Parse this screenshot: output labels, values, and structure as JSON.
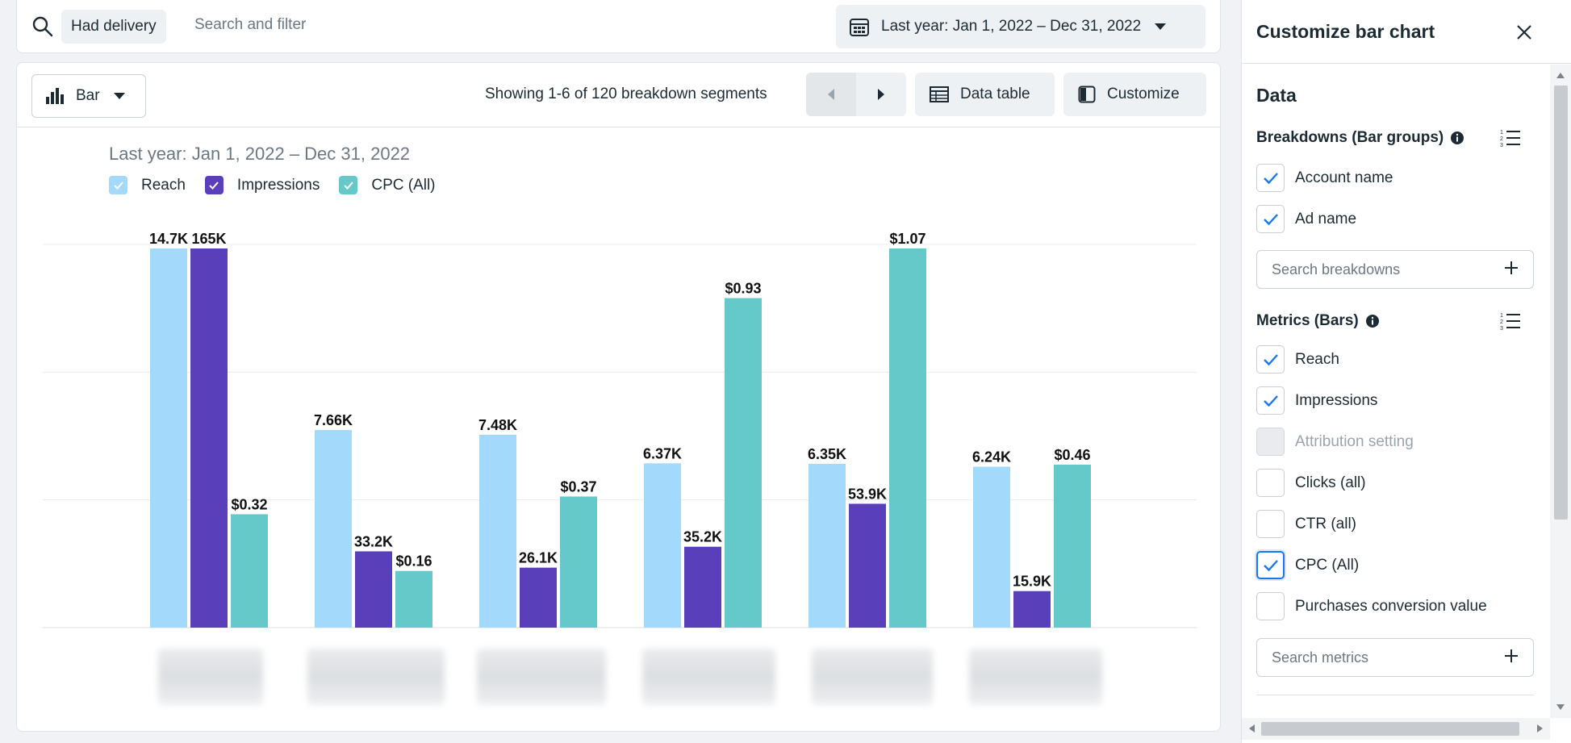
{
  "filter_bar": {
    "chip_label": "Had delivery",
    "search_placeholder": "Search and filter",
    "date_range_label": "Last year: Jan 1, 2022 – Dec 31, 2022"
  },
  "toolbar": {
    "chart_type_label": "Bar",
    "showing_text": "Showing 1-6 of 120 breakdown segments",
    "data_table_label": "Data table",
    "customize_label": "Customize"
  },
  "chart_data": {
    "type": "bar",
    "title": "Last year: Jan 1, 2022 – Dec 31, 2022",
    "categories": [
      "",
      "",
      "",
      "",
      "",
      ""
    ],
    "series": [
      {
        "name": "Reach",
        "color": "#a3d9fb",
        "values": [
          14.7,
          7.66,
          7.48,
          6.37,
          6.35,
          6.24
        ],
        "labels": [
          "14.7K",
          "7.66K",
          "7.48K",
          "6.37K",
          "6.35K",
          "6.24K"
        ]
      },
      {
        "name": "Impressions",
        "color": "#5a3fbb",
        "values": [
          165,
          33.2,
          26.1,
          35.2,
          53.9,
          15.9
        ],
        "labels": [
          "165K",
          "33.2K",
          "26.1K",
          "35.2K",
          "53.9K",
          "15.9K"
        ]
      },
      {
        "name": "CPC (All)",
        "color": "#66c9c9",
        "values": [
          0.32,
          0.16,
          0.37,
          0.93,
          1.07,
          0.46
        ],
        "labels": [
          "$0.32",
          "$0.16",
          "$0.37",
          "$0.93",
          "$1.07",
          "$0.46"
        ]
      }
    ],
    "scale_note": "each series scaled independently",
    "series_max": [
      14.7,
      165,
      1.07
    ],
    "grid": true,
    "legend": "top-left",
    "xlabel": "",
    "ylabel": ""
  },
  "side_panel": {
    "title": "Customize bar chart",
    "data_heading": "Data",
    "breakdowns_heading": "Breakdowns (Bar groups)",
    "breakdowns": [
      {
        "label": "Account name",
        "checked": true
      },
      {
        "label": "Ad name",
        "checked": true
      }
    ],
    "search_breakdowns_placeholder": "Search breakdowns",
    "metrics_heading": "Metrics (Bars)",
    "metrics": [
      {
        "label": "Reach",
        "state": "checked"
      },
      {
        "label": "Impressions",
        "state": "checked"
      },
      {
        "label": "Attribution setting",
        "state": "disabled"
      },
      {
        "label": "Clicks (all)",
        "state": "unchecked"
      },
      {
        "label": "CTR (all)",
        "state": "unchecked"
      },
      {
        "label": "CPC (All)",
        "state": "focused"
      },
      {
        "label": "Purchases conversion value",
        "state": "unchecked"
      }
    ],
    "search_metrics_placeholder": "Search metrics"
  },
  "colors": {
    "accent": "#1877f2",
    "reach": "#a3d9fb",
    "impressions": "#5a3fbb",
    "cpc": "#66c9c9"
  }
}
